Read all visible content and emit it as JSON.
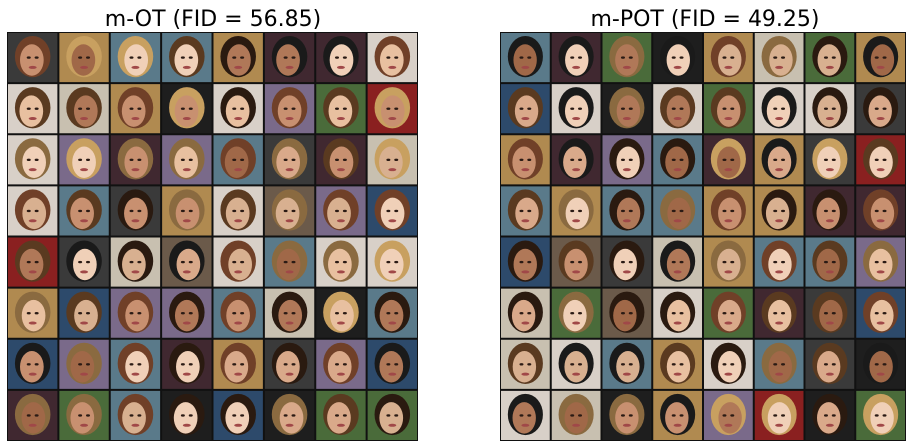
{
  "panels": [
    {
      "title": "m-OT (FID = 56.85)"
    },
    {
      "title": "m-POT (FID = 49.25)"
    }
  ]
}
